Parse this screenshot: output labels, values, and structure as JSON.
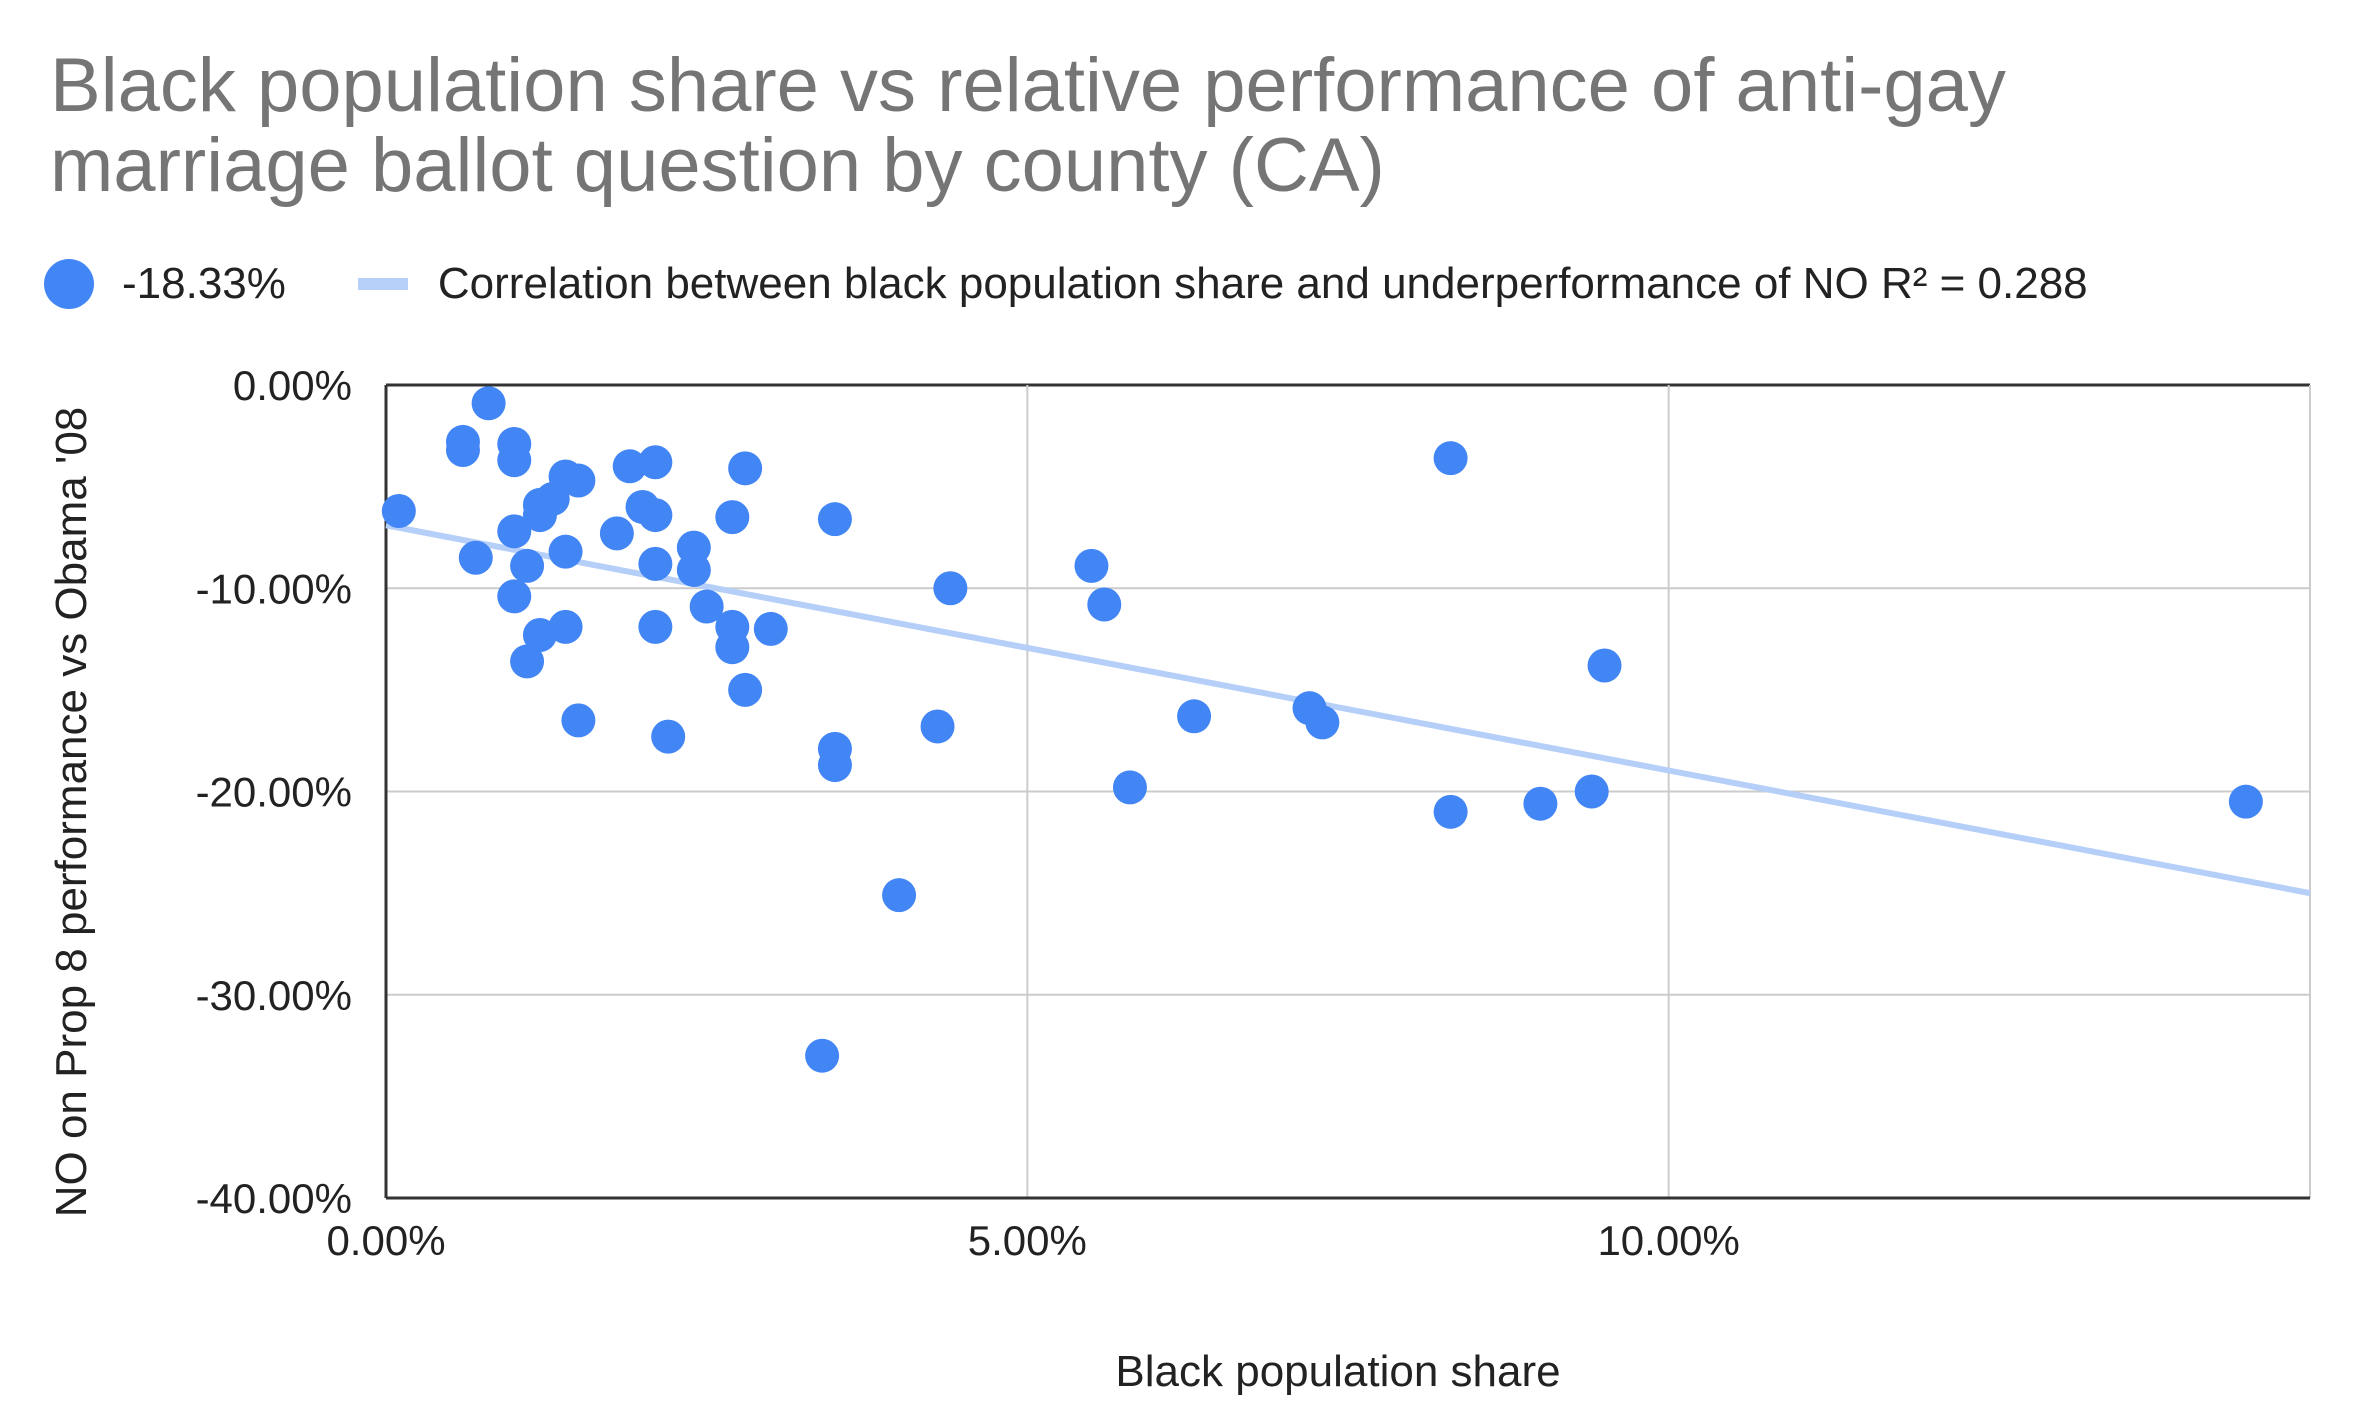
{
  "chart_data": {
    "type": "scatter",
    "title": "Black population share vs relative performance of anti-gay marriage ballot question by county (CA)",
    "title_lines": [
      "Black population share vs relative performance of anti-gay",
      "marriage ballot question by county (CA)"
    ],
    "xlabel": "Black population share",
    "ylabel": "NO on Prop 8 performance vs Obama '08",
    "xlim": [
      0,
      15
    ],
    "ylim": [
      -40,
      0
    ],
    "x_ticks": [
      0,
      5,
      10
    ],
    "x_tick_labels": [
      "0.00%",
      "5.00%",
      "10.00%"
    ],
    "y_ticks": [
      0,
      -10,
      -20,
      -30,
      -40
    ],
    "y_tick_labels": [
      "0.00%",
      "-10.00%",
      "-20.00%",
      "-30.00%",
      "-40.00%"
    ],
    "grid": true,
    "legend_position": "top",
    "colors": {
      "points": "#4285f4",
      "trendline": "#b5cff8",
      "title": "#757575",
      "axis_text": "#222222",
      "grid": "#cccccc"
    },
    "series": [
      {
        "name": "-18.33%",
        "points": [
          [
            0.1,
            -6.2
          ],
          [
            0.6,
            -2.8
          ],
          [
            0.6,
            -3.2
          ],
          [
            0.7,
            -8.5
          ],
          [
            0.8,
            -0.9
          ],
          [
            1.0,
            -2.9
          ],
          [
            1.0,
            -3.7
          ],
          [
            1.0,
            -7.2
          ],
          [
            1.0,
            -10.4
          ],
          [
            1.1,
            -8.9
          ],
          [
            1.1,
            -13.6
          ],
          [
            1.2,
            -5.9
          ],
          [
            1.2,
            -6.4
          ],
          [
            1.2,
            -12.3
          ],
          [
            1.3,
            -5.6
          ],
          [
            1.4,
            -4.5
          ],
          [
            1.4,
            -8.2
          ],
          [
            1.4,
            -11.9
          ],
          [
            1.5,
            -4.7
          ],
          [
            1.5,
            -16.5
          ],
          [
            1.8,
            -7.3
          ],
          [
            1.9,
            -4.0
          ],
          [
            2.0,
            -6.0
          ],
          [
            2.1,
            -3.8
          ],
          [
            2.1,
            -6.4
          ],
          [
            2.1,
            -8.8
          ],
          [
            2.1,
            -11.9
          ],
          [
            2.2,
            -17.3
          ],
          [
            2.4,
            -8.0
          ],
          [
            2.4,
            -9.1
          ],
          [
            2.5,
            -10.9
          ],
          [
            2.7,
            -6.5
          ],
          [
            2.7,
            -11.9
          ],
          [
            2.7,
            -12.9
          ],
          [
            2.8,
            -4.1
          ],
          [
            2.8,
            -15.0
          ],
          [
            3.0,
            -12.0
          ],
          [
            3.4,
            -33.0
          ],
          [
            3.5,
            -6.6
          ],
          [
            3.5,
            -17.9
          ],
          [
            3.5,
            -18.7
          ],
          [
            4.0,
            -25.1
          ],
          [
            4.3,
            -16.8
          ],
          [
            4.4,
            -10.0
          ],
          [
            5.5,
            -8.9
          ],
          [
            5.6,
            -10.8
          ],
          [
            5.8,
            -19.8
          ],
          [
            6.3,
            -16.3
          ],
          [
            7.2,
            -15.9
          ],
          [
            7.3,
            -16.6
          ],
          [
            8.3,
            -3.6
          ],
          [
            8.3,
            -21.0
          ],
          [
            9.0,
            -20.6
          ],
          [
            9.4,
            -20.0
          ],
          [
            9.5,
            -13.8
          ],
          [
            14.5,
            -20.5
          ]
        ]
      }
    ],
    "trendline": {
      "name": "Correlation between black population share and underperformance of NO R² = 0.288",
      "start": [
        0,
        -6.9
      ],
      "end": [
        15,
        -25.0
      ]
    }
  }
}
